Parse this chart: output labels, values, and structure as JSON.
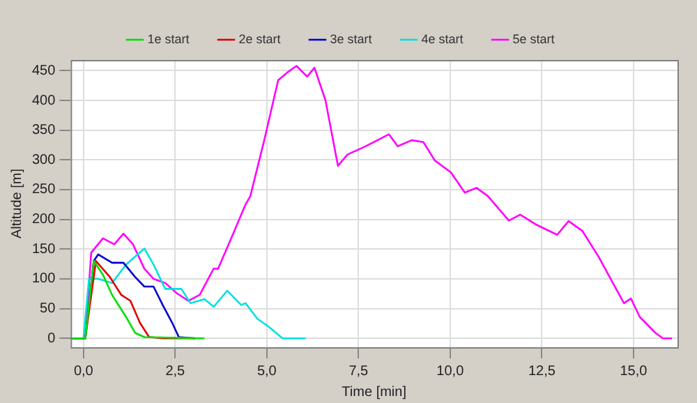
{
  "chart_data": {
    "type": "line",
    "xlabel": "Time [min]",
    "ylabel": "Altitude [m]",
    "xlim": [
      -0.35,
      16.2
    ],
    "ylim": [
      -15,
      468
    ],
    "xticks": [
      {
        "value": 0,
        "label": "0,0"
      },
      {
        "value": 2.5,
        "label": "2,5"
      },
      {
        "value": 5,
        "label": "5,0"
      },
      {
        "value": 7.5,
        "label": "7,5"
      },
      {
        "value": 10,
        "label": "10,0"
      },
      {
        "value": 12.5,
        "label": "12,5"
      },
      {
        "value": 15,
        "label": "15,0"
      }
    ],
    "yticks": [
      0,
      50,
      100,
      150,
      200,
      250,
      300,
      350,
      400,
      450
    ],
    "grid": true,
    "legend": "top",
    "marker": "none",
    "line_style": "solid",
    "series": [
      {
        "name": "1e start",
        "color": "#00e000",
        "x": [
          -0.35,
          0.05,
          0.28,
          0.53,
          0.78,
          1.16,
          1.41,
          1.66,
          3.3
        ],
        "values": [
          0,
          0,
          130,
          107,
          73,
          36,
          9,
          2,
          0
        ]
      },
      {
        "name": "2e start",
        "color": "#e00000",
        "x": [
          -0.35,
          0.05,
          0.34,
          0.72,
          1.03,
          1.28,
          1.54,
          1.79,
          2.16,
          3.05
        ],
        "values": [
          0,
          0,
          130,
          103,
          73,
          63,
          26,
          2,
          0,
          0
        ]
      },
      {
        "name": "3e start",
        "color": "#0000d0",
        "x": [
          -0.35,
          0.05,
          0.28,
          0.4,
          0.78,
          1.09,
          1.41,
          1.66,
          1.91,
          2.16,
          2.42,
          2.6,
          3.05
        ],
        "values": [
          0,
          0,
          130,
          141,
          127,
          127,
          103,
          87,
          87,
          56,
          26,
          2,
          0
        ]
      },
      {
        "name": "4e start",
        "color": "#00e0e0",
        "x": [
          -0.35,
          0.0,
          0.15,
          0.4,
          0.78,
          1.16,
          1.66,
          1.91,
          2.23,
          2.67,
          2.92,
          3.3,
          3.55,
          3.92,
          4.3,
          4.42,
          4.74,
          5.06,
          5.43,
          6.06
        ],
        "values": [
          0,
          0,
          100,
          100,
          93,
          124,
          151,
          124,
          83,
          83,
          59,
          66,
          53,
          80,
          56,
          59,
          33,
          19,
          0,
          0
        ]
      },
      {
        "name": "5e start",
        "color": "#ff00ff",
        "x": [
          -0.35,
          0.05,
          0.21,
          0.53,
          0.84,
          1.09,
          1.35,
          1.66,
          1.91,
          2.23,
          2.54,
          2.86,
          3.17,
          3.55,
          3.67,
          4.05,
          4.42,
          4.55,
          4.93,
          5.31,
          5.56,
          5.81,
          6.1,
          6.3,
          6.6,
          6.94,
          7.2,
          7.7,
          8.33,
          8.57,
          8.95,
          9.27,
          9.58,
          10.02,
          10.4,
          10.72,
          11.03,
          11.6,
          11.91,
          12.35,
          12.92,
          13.23,
          13.6,
          14.05,
          14.74,
          14.93,
          15.17,
          15.6,
          15.8,
          16.05
        ],
        "values": [
          0,
          0,
          144,
          168,
          158,
          176,
          158,
          117,
          100,
          93,
          76,
          63,
          73,
          117,
          117,
          171,
          225,
          239,
          333,
          434,
          447,
          458,
          440,
          455,
          400,
          290,
          309,
          323,
          343,
          323,
          333,
          330,
          299,
          279,
          245,
          253,
          239,
          198,
          208,
          191,
          174,
          197,
          181,
          137,
          59,
          67,
          36,
          9,
          0,
          0
        ]
      }
    ]
  }
}
